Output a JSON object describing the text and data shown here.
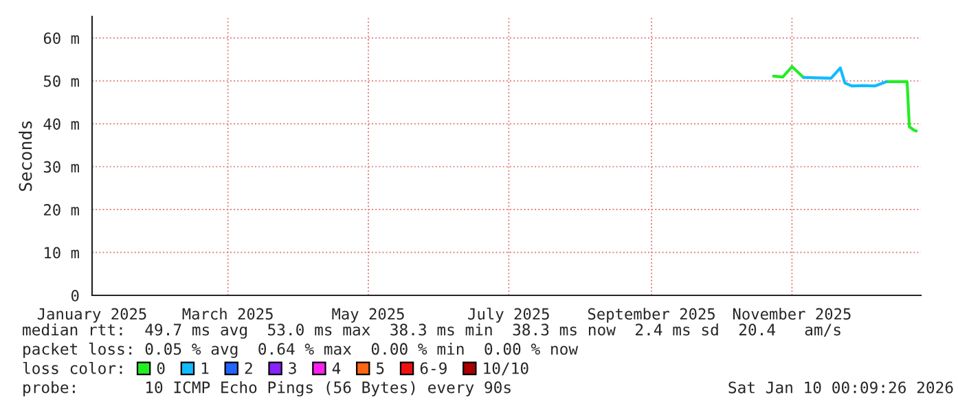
{
  "chart_data": {
    "type": "line",
    "ylabel": "Seconds",
    "x": [
      "2025-10-24",
      "2025-10-28",
      "2025-11-01",
      "2025-11-06",
      "2025-11-12",
      "2025-11-18",
      "2025-11-22",
      "2025-11-24",
      "2025-11-27",
      "2025-12-02",
      "2025-12-07",
      "2025-12-12",
      "2025-12-18",
      "2025-12-21",
      "2025-12-22",
      "2025-12-24",
      "2025-12-25"
    ],
    "series": [
      {
        "name": "0",
        "color": "#22ee22",
        "values": [
          51.1,
          50.9,
          53.3,
          50.8,
          null,
          null,
          null,
          null,
          null,
          null,
          null,
          49.8,
          49.8,
          49.8,
          39.3,
          38.5,
          38.3
        ]
      },
      {
        "name": "1",
        "color": "#11bbff",
        "values": [
          null,
          null,
          null,
          50.8,
          50.7,
          50.6,
          53.0,
          49.5,
          48.8,
          48.9,
          48.8,
          49.8,
          null,
          null,
          null,
          null,
          null
        ]
      },
      {
        "name": "2",
        "color": "#2266ff",
        "values": [
          null,
          null,
          null,
          null,
          null,
          null,
          null,
          null,
          null,
          null,
          null,
          null,
          null,
          null,
          null,
          null,
          null
        ]
      },
      {
        "name": "3",
        "color": "#8822ff",
        "values": [
          null,
          null,
          null,
          null,
          null,
          null,
          null,
          null,
          null,
          null,
          null,
          null,
          null,
          null,
          null,
          null,
          null
        ]
      },
      {
        "name": "4",
        "color": "#ff22ee",
        "values": [
          null,
          null,
          null,
          null,
          null,
          null,
          null,
          null,
          null,
          null,
          null,
          null,
          null,
          null,
          null,
          null,
          null
        ]
      },
      {
        "name": "5",
        "color": "#ff6611",
        "values": [
          null,
          null,
          null,
          null,
          null,
          null,
          null,
          null,
          null,
          null,
          null,
          null,
          null,
          null,
          null,
          null,
          null
        ]
      },
      {
        "name": "6-9",
        "color": "#ee1111",
        "values": [
          null,
          null,
          null,
          null,
          null,
          null,
          null,
          null,
          null,
          null,
          null,
          null,
          null,
          null,
          null,
          null,
          null
        ]
      },
      {
        "name": "10/10",
        "color": "#aa0000",
        "values": [
          null,
          null,
          null,
          null,
          null,
          null,
          null,
          null,
          null,
          null,
          null,
          null,
          null,
          null,
          null,
          null,
          null
        ]
      }
    ],
    "xlim": [
      "2025-01-01",
      "2025-12-27"
    ],
    "xticks": [
      {
        "value": "2025-01-01",
        "label": "January 2025"
      },
      {
        "value": "2025-03-01",
        "label": "March 2025"
      },
      {
        "value": "2025-05-01",
        "label": "May 2025"
      },
      {
        "value": "2025-07-01",
        "label": "July 2025"
      },
      {
        "value": "2025-09-01",
        "label": "September 2025"
      },
      {
        "value": "2025-11-01",
        "label": "November 2025"
      }
    ],
    "ylim": [
      0,
      65
    ],
    "yticks": [
      0,
      {
        "value": 10,
        "label": "10 m"
      },
      {
        "value": 20,
        "label": "20 m"
      },
      {
        "value": 30,
        "label": "30 m"
      },
      {
        "value": 40,
        "label": "40 m"
      },
      {
        "value": 50,
        "label": "50 m"
      },
      {
        "value": 60,
        "label": "60 m"
      }
    ],
    "grid": true,
    "legend": "bottom",
    "marker": "none",
    "line_style": "solid",
    "annotations": [
      "median rtt:  49.7 ms avg  53.0 ms max  38.3 ms min  38.3 ms now  2.4 ms sd  20.4   am/s",
      "packet loss: 0.05 % avg  0.64 % max  0.00 % min  0.00 % now",
      "loss color:",
      "probe:       10 ICMP Echo Pings (56 Bytes) every 90s",
      "Sat Jan 10 00:09:26 2026"
    ]
  }
}
